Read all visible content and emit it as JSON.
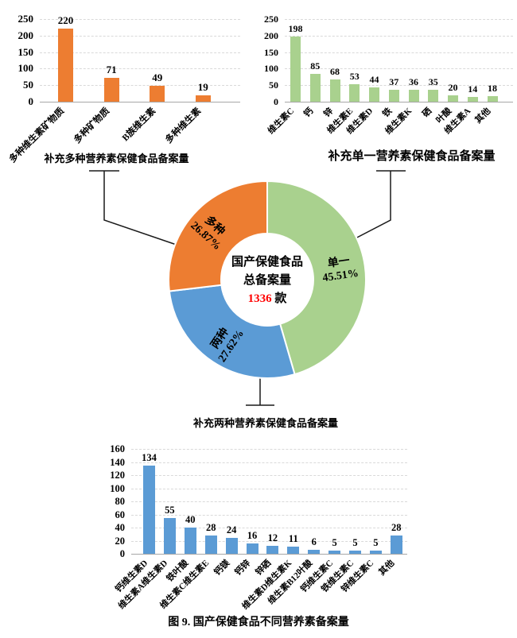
{
  "figure_caption": "图 9. 国产保健食品不同营养素备案量",
  "colors": {
    "orange": "#ED7D31",
    "green": "#A9D18E",
    "blue": "#5B9BD5",
    "orange_box_bg": "#F8CBAD",
    "green_box_bg": "#A9D18E",
    "blue_box_bg": "#5B9BD5",
    "count_red": "#FF0000",
    "grid": "#D9D9D9",
    "connector": "#1a1a1a"
  },
  "boxes": {
    "multi": "补充多种营养素保健食品备案量",
    "single": "补充单一营养素保健食品备案量",
    "two": "补充两种营养素保健食品备案量"
  },
  "donut_center": {
    "line1": "国产保健食品",
    "line2": "总备案量",
    "count": "1336",
    "unit": " 款"
  },
  "chart_data": [
    {
      "id": "multi_bar",
      "type": "bar",
      "title": "补充多种营养素保健食品备案量",
      "categories": [
        "多种维生素矿物质",
        "多种矿物质",
        "B族维生素",
        "多种维生素"
      ],
      "values": [
        220,
        71,
        49,
        19
      ],
      "ylim": [
        0,
        250
      ],
      "yticks": [
        0,
        50,
        100,
        150,
        200,
        250
      ],
      "grid": "dashed",
      "color": "#ED7D31"
    },
    {
      "id": "single_bar",
      "type": "bar",
      "title": "补充单一营养素保健食品备案量",
      "categories": [
        "维生素C",
        "钙",
        "锌",
        "维生素E",
        "维生素D",
        "铁",
        "维生素K",
        "硒",
        "叶酸",
        "维生素A",
        "其他"
      ],
      "values": [
        198,
        85,
        68,
        53,
        44,
        37,
        36,
        35,
        20,
        14,
        18
      ],
      "ylim": [
        0,
        250
      ],
      "yticks": [
        0,
        50,
        100,
        150,
        200,
        250
      ],
      "grid": "dashed",
      "color": "#A9D18E"
    },
    {
      "id": "two_bar",
      "type": "bar",
      "title": "补充两种营养素保健食品备案量",
      "categories": [
        "钙维生素D",
        "维生素A维生素D",
        "铁叶酸",
        "维生素C维生素E",
        "钙镁",
        "钙锌",
        "锌硒",
        "维生素D维生素K",
        "维生素B12叶酸",
        "钙维生素C",
        "铁维生素C",
        "锌维生素C",
        "其他"
      ],
      "values": [
        134,
        55,
        40,
        28,
        24,
        16,
        12,
        11,
        6,
        5,
        5,
        5,
        28
      ],
      "ylim": [
        0,
        160
      ],
      "yticks": [
        0,
        20,
        40,
        60,
        80,
        100,
        120,
        140,
        160
      ],
      "grid": "dashed",
      "color": "#5B9BD5"
    },
    {
      "id": "donut",
      "type": "pie",
      "title": "国产保健食品总备案量",
      "total_label": "1336 款",
      "slices": [
        {
          "label": "单一",
          "pct": 45.51,
          "pct_label": "45.51%",
          "color": "#A9D18E"
        },
        {
          "label": "两种",
          "pct": 27.62,
          "pct_label": "27.62%",
          "color": "#5B9BD5"
        },
        {
          "label": "多种",
          "pct": 26.87,
          "pct_label": "26.87%",
          "color": "#ED7D31"
        }
      ],
      "start_angle_deg": 0,
      "direction": "clockwise"
    }
  ]
}
